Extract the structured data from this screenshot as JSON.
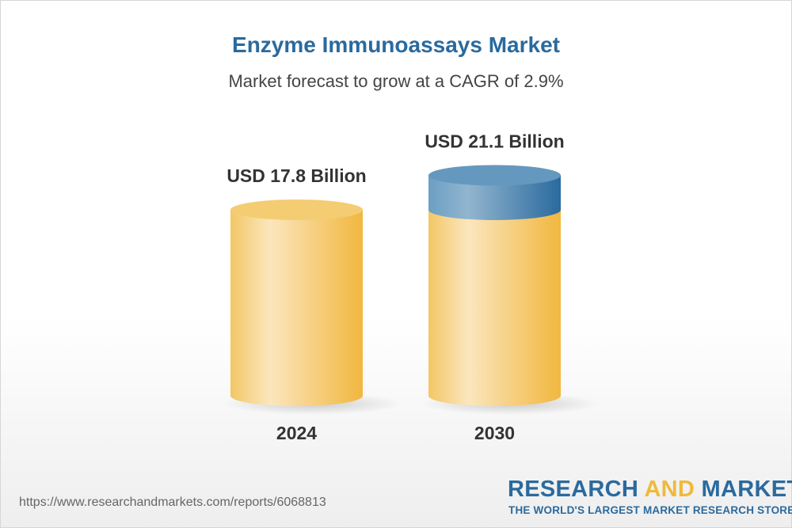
{
  "chart_data": {
    "type": "bar",
    "title": "Enzyme Immunoassays Market",
    "subtitle": "Market forecast to grow at a CAGR of 2.9%",
    "categories": [
      "2024",
      "2030"
    ],
    "values": [
      17.8,
      21.1
    ],
    "data_labels": [
      "USD 17.8 Billion",
      "USD 21.1 Billion"
    ],
    "unit": "USD Billion",
    "colors": {
      "base": "#f2bd4a",
      "growth": "#2a6a9e"
    },
    "grid": false,
    "legend": "none"
  },
  "footer": {
    "url": "https://www.researchandmarkets.com/reports/6068813",
    "brand_part1": "RESEARCH ",
    "brand_part2": "AND",
    "brand_part3": " MARKETS",
    "tagline": "THE WORLD'S LARGEST MARKET RESEARCH STORE"
  }
}
